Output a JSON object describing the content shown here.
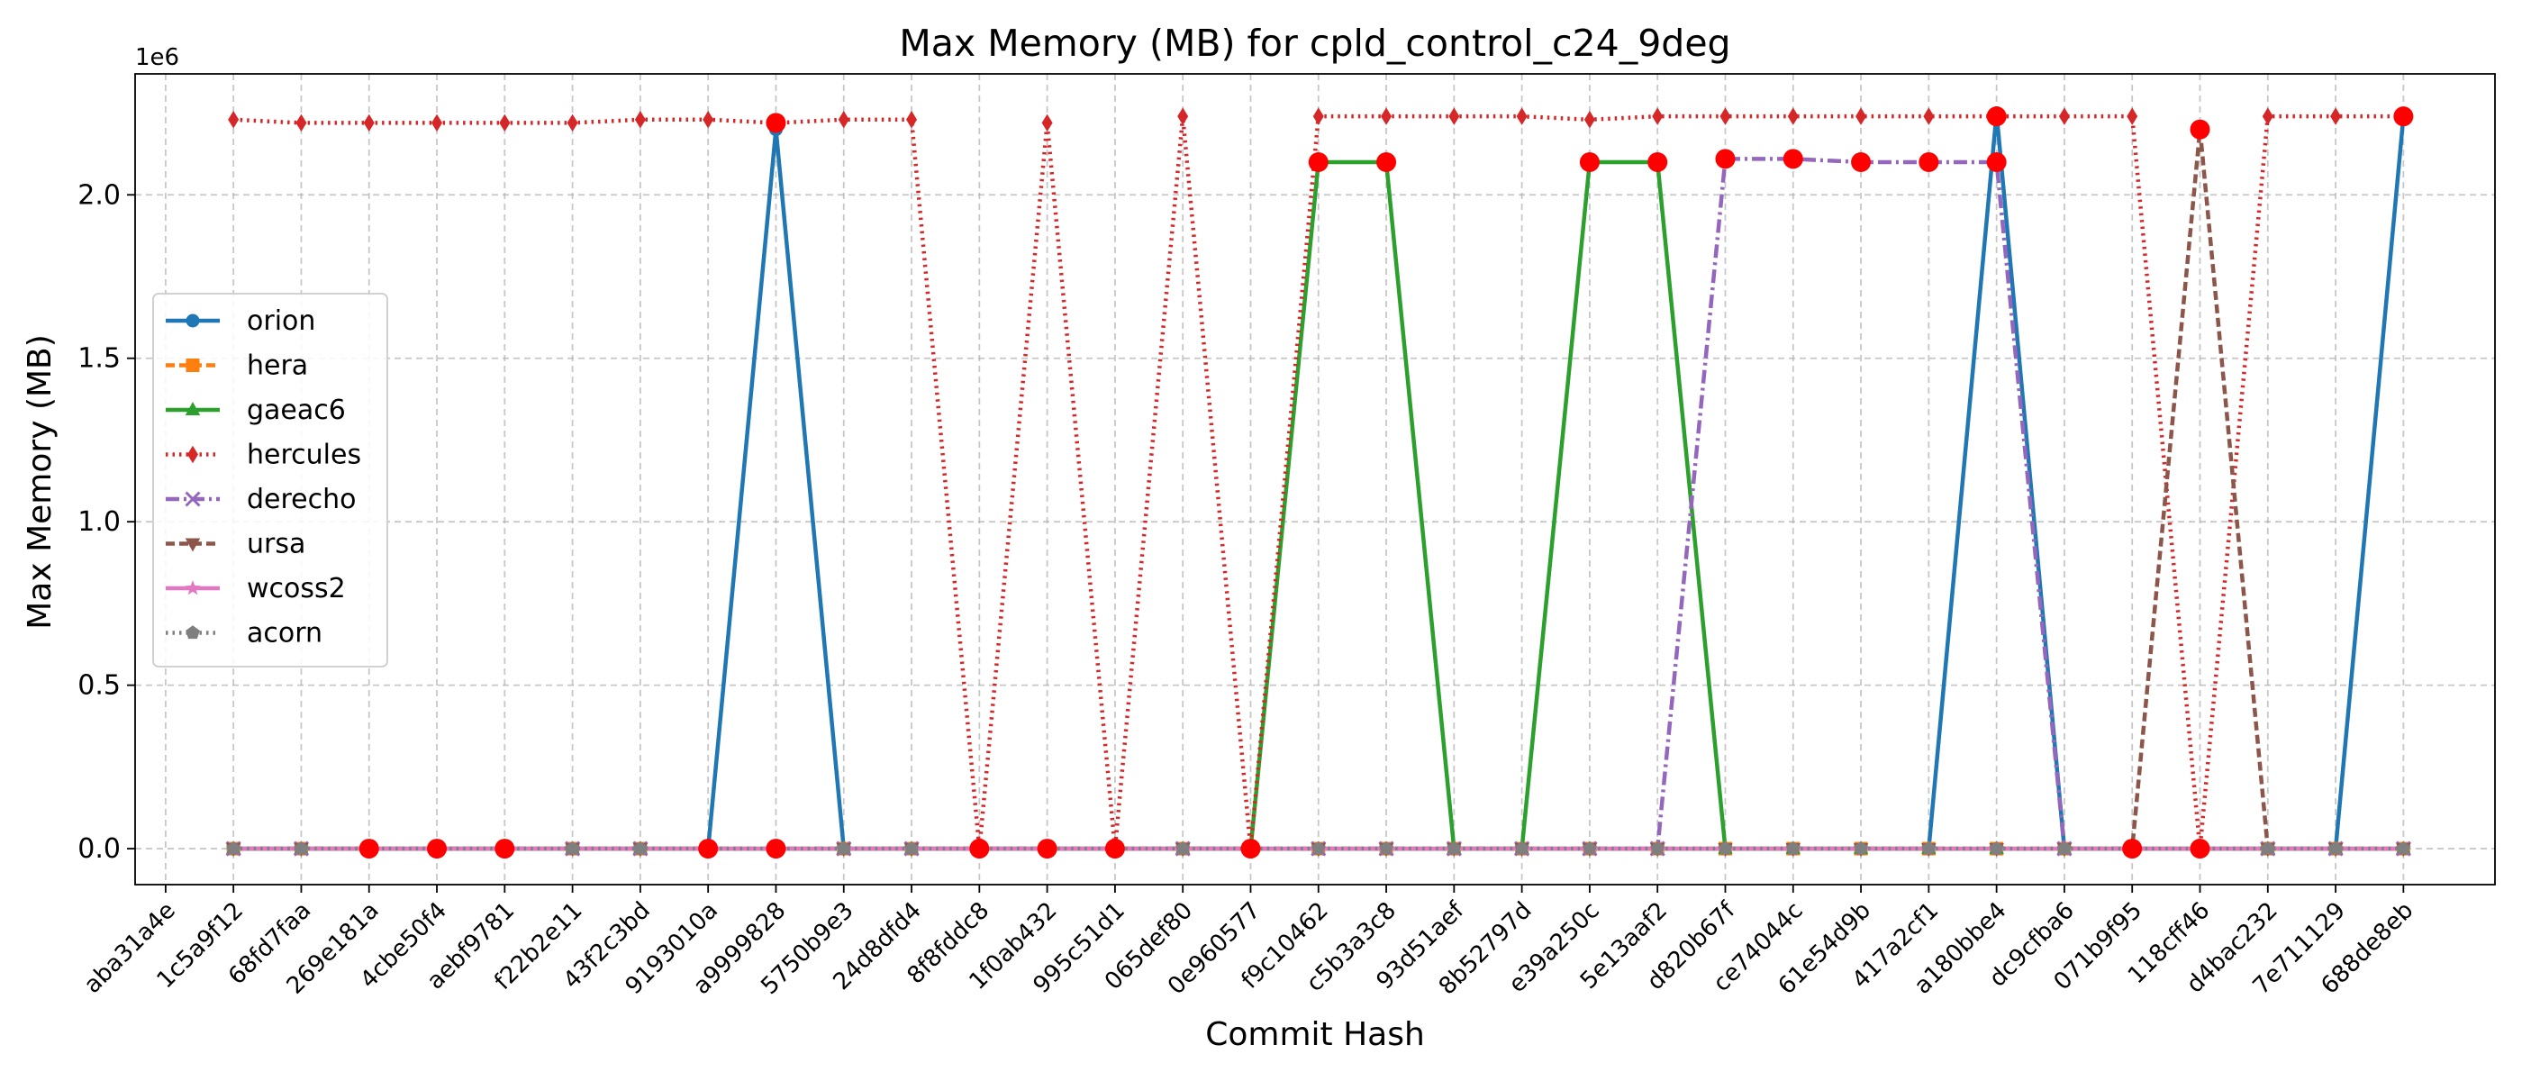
{
  "chart_data": {
    "type": "line",
    "title": "Max Memory (MB) for cpld_control_c24_9deg",
    "xlabel": "Commit Hash",
    "ylabel": "Max Memory (MB)",
    "y_offset_label": "1e6",
    "y_scale_factor": 1000000,
    "ylim": [
      -0.11,
      2.37
    ],
    "yticks": [
      0.0,
      0.5,
      1.0,
      1.5,
      2.0
    ],
    "ytick_labels": [
      "0.0",
      "0.5",
      "1.0",
      "1.5",
      "2.0"
    ],
    "grid": true,
    "legend_position": "center-left",
    "categories": [
      "aba31a4e",
      "1c5a9f12",
      "68fd7faa",
      "269e181a",
      "4cbe50f4",
      "aebf9781",
      "f22b2e11",
      "43f2c3bd",
      "9193010a",
      "a9999828",
      "5750b9e3",
      "24d8dfd4",
      "8f8fddc8",
      "1f0ab432",
      "995c51d1",
      "065def80",
      "0e960577",
      "f9c10462",
      "c5b3a3c8",
      "93d51aef",
      "8b52797d",
      "e39a250c",
      "5e13aaf2",
      "d820b67f",
      "ce74044c",
      "61e54d9b",
      "417a2cf1",
      "a180bbe4",
      "dc9cfba6",
      "071b9f95",
      "118cff46",
      "d4bac232",
      "7e711129",
      "688de8eb"
    ],
    "series": [
      {
        "name": "orion",
        "color": "#1f77b4",
        "dash": "",
        "marker": "circle",
        "values": [
          null,
          0,
          0,
          0,
          0,
          0,
          0,
          0,
          0,
          2.2,
          0,
          0,
          0,
          0,
          0,
          0,
          0,
          0,
          0,
          0,
          0,
          0,
          0,
          0,
          0,
          0,
          0,
          2.25,
          0,
          0,
          0,
          0,
          0,
          2.24
        ]
      },
      {
        "name": "hera",
        "color": "#ff7f0e",
        "dash": "10 5",
        "marker": "square",
        "values": [
          null,
          0,
          0,
          0,
          0,
          0,
          0,
          0,
          0,
          0,
          0,
          0,
          0,
          0,
          0,
          0,
          0,
          0,
          0,
          0,
          0,
          0,
          0,
          0,
          0,
          0,
          0,
          0,
          0,
          0,
          0,
          0,
          0,
          0
        ]
      },
      {
        "name": "gaeac6",
        "color": "#2ca02c",
        "dash": "",
        "marker": "triangle-up",
        "values": [
          null,
          0,
          0,
          0,
          0,
          0,
          0,
          0,
          0,
          0,
          0,
          0,
          0,
          0,
          0,
          0,
          0,
          2.1,
          2.1,
          0,
          0,
          2.1,
          2.1,
          0,
          0,
          0,
          0,
          0,
          0,
          0,
          0,
          0,
          0,
          0
        ]
      },
      {
        "name": "hercules",
        "color": "#d62728",
        "dash": "2.5 5",
        "marker": "diamond",
        "values": [
          null,
          2.23,
          2.22,
          2.22,
          2.22,
          2.22,
          2.22,
          2.23,
          2.23,
          2.22,
          2.23,
          2.23,
          0,
          2.22,
          0,
          2.24,
          0,
          2.24,
          2.24,
          2.24,
          2.24,
          2.23,
          2.24,
          2.24,
          2.24,
          2.24,
          2.24,
          2.24,
          2.24,
          2.24,
          0,
          2.24,
          2.24,
          2.24
        ]
      },
      {
        "name": "derecho",
        "color": "#9467bd",
        "dash": "15 5 3 5",
        "marker": "x",
        "values": [
          null,
          0,
          0,
          0,
          0,
          0,
          0,
          0,
          0,
          0,
          0,
          0,
          0,
          0,
          0,
          0,
          0,
          0,
          0,
          0,
          0,
          0,
          0,
          2.11,
          2.11,
          2.1,
          2.1,
          2.1,
          0,
          0,
          0,
          0,
          0,
          0
        ]
      },
      {
        "name": "ursa",
        "color": "#8c564b",
        "dash": "10 5",
        "marker": "triangle-down",
        "values": [
          null,
          0,
          0,
          0,
          0,
          0,
          0,
          0,
          0,
          0,
          0,
          0,
          0,
          0,
          0,
          0,
          0,
          0,
          0,
          0,
          0,
          0,
          0,
          0,
          0,
          0,
          0,
          0,
          0,
          0,
          2.2,
          0,
          0,
          0
        ]
      },
      {
        "name": "wcoss2",
        "color": "#e377c2",
        "dash": "",
        "marker": "star",
        "values": [
          null,
          0,
          0,
          0,
          0,
          0,
          0,
          0,
          0,
          0,
          0,
          0,
          0,
          0,
          0,
          0,
          0,
          0,
          0,
          0,
          0,
          0,
          0,
          0,
          0,
          0,
          0,
          0,
          0,
          0,
          0,
          0,
          0,
          0
        ]
      },
      {
        "name": "acorn",
        "color": "#7f7f7f",
        "dash": "2.5 5",
        "marker": "pentagon",
        "values": [
          null,
          0,
          0,
          0,
          0,
          0,
          0,
          0,
          0,
          0,
          0,
          0,
          0,
          0,
          0,
          0,
          0,
          0,
          0,
          0,
          0,
          0,
          0,
          0,
          0,
          0,
          0,
          0,
          0,
          0,
          0,
          0,
          0,
          0
        ]
      }
    ],
    "highlight_points": {
      "color": "#ff0000",
      "points": [
        {
          "x": "269e181a",
          "y": 0
        },
        {
          "x": "4cbe50f4",
          "y": 0
        },
        {
          "x": "aebf9781",
          "y": 0
        },
        {
          "x": "9193010a",
          "y": 0
        },
        {
          "x": "a9999828",
          "y": 2.22
        },
        {
          "x": "a9999828",
          "y": 0
        },
        {
          "x": "8f8fddc8",
          "y": 0
        },
        {
          "x": "1f0ab432",
          "y": 0
        },
        {
          "x": "995c51d1",
          "y": 0
        },
        {
          "x": "0e960577",
          "y": 0
        },
        {
          "x": "f9c10462",
          "y": 2.1
        },
        {
          "x": "c5b3a3c8",
          "y": 2.1
        },
        {
          "x": "e39a250c",
          "y": 2.1
        },
        {
          "x": "5e13aaf2",
          "y": 2.1
        },
        {
          "x": "d820b67f",
          "y": 2.11
        },
        {
          "x": "ce74044c",
          "y": 2.11
        },
        {
          "x": "61e54d9b",
          "y": 2.1
        },
        {
          "x": "417a2cf1",
          "y": 2.1
        },
        {
          "x": "a180bbe4",
          "y": 2.1
        },
        {
          "x": "a180bbe4",
          "y": 2.24
        },
        {
          "x": "071b9f95",
          "y": 0
        },
        {
          "x": "118cff46",
          "y": 2.2
        },
        {
          "x": "118cff46",
          "y": 0
        },
        {
          "x": "688de8eb",
          "y": 2.24
        }
      ]
    }
  }
}
